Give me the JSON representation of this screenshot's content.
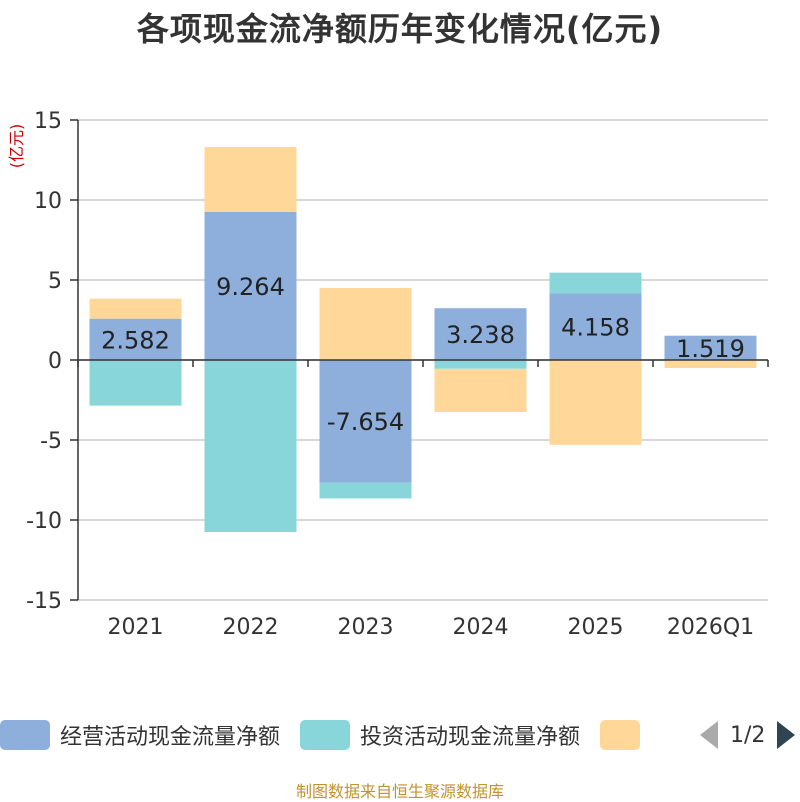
{
  "chart_data": {
    "type": "bar",
    "stacked": true,
    "title": "各项现金流净额历年变化情况(亿元)",
    "ylabel": "(亿元)",
    "categories": [
      "2021",
      "2022",
      "2023",
      "2024",
      "2025",
      "2026Q1"
    ],
    "ylim": [
      -15,
      15
    ],
    "yticks": [
      15,
      10,
      5,
      0,
      -5,
      -10,
      -15
    ],
    "grid": true,
    "legend_position": "bottom",
    "series": [
      {
        "name": "经营活动现金流量净额",
        "color": "#8eaedb",
        "values": [
          2.582,
          9.264,
          -7.654,
          3.238,
          4.158,
          1.519
        ],
        "show_labels": true
      },
      {
        "name": "投资活动现金流量净额",
        "color": "#88d6d9",
        "values": [
          -2.85,
          -10.75,
          -1.0,
          -0.55,
          1.3,
          0
        ]
      },
      {
        "name": "",
        "color": "#ffd899",
        "values": [
          1.25,
          4.05,
          4.5,
          -2.7,
          -5.3,
          -0.5
        ]
      }
    ],
    "legend": {
      "page": "1/2"
    }
  },
  "footer": "制图数据来自恒生聚源数据库"
}
